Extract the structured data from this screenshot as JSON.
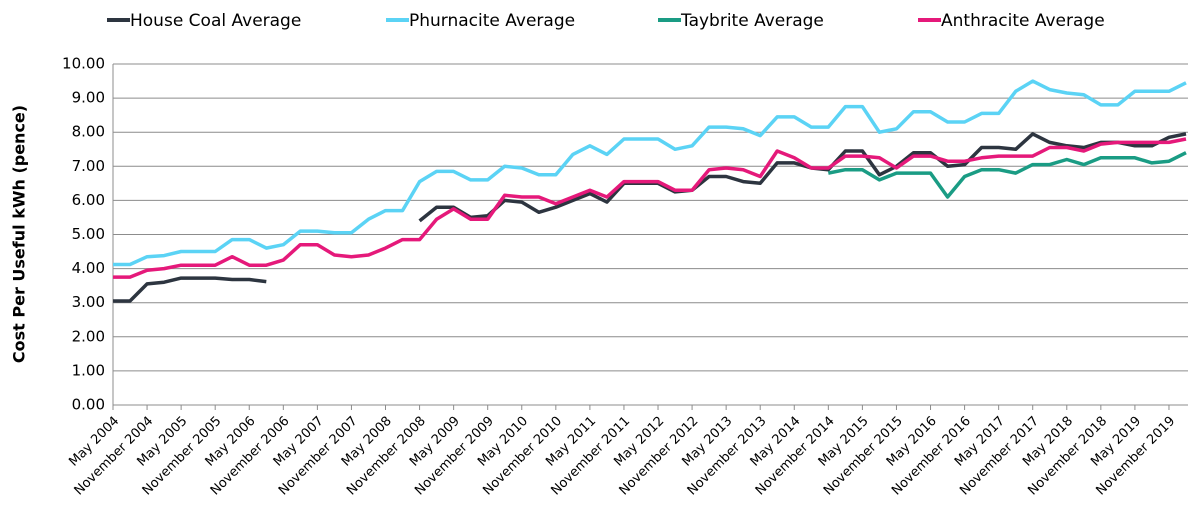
{
  "chart_data": {
    "type": "line",
    "y_label": "Cost Per Useful kWh (pence)",
    "categories": [
      "May 2004",
      null,
      "November 2004",
      null,
      "May 2005",
      null,
      "November 2005",
      null,
      "May 2006",
      null,
      "November 2006",
      null,
      "May 2007",
      null,
      "November 2007",
      null,
      "May 2008",
      null,
      "November 2008",
      null,
      "May 2009",
      null,
      "November 2009",
      null,
      "May 2010",
      null,
      "November 2010",
      null,
      "May 2011",
      null,
      "November 2011",
      null,
      "May 2012",
      null,
      "November 2012",
      null,
      "May 2013",
      null,
      "November 2013",
      null,
      "May 2014",
      null,
      "November 2014",
      null,
      "May 2015",
      null,
      "November 2015",
      null,
      "May 2016",
      null,
      "November 2016",
      null,
      "May 2017",
      null,
      "November 2017",
      null,
      "May 2018",
      null,
      "November 2018",
      null,
      "May 2019",
      null,
      "November 2019",
      null
    ],
    "series": [
      {
        "name": "House Coal Average",
        "color": "#2d3540",
        "values": [
          3.05,
          3.05,
          3.55,
          3.6,
          3.72,
          3.72,
          3.72,
          3.68,
          3.68,
          3.62,
          null,
          null,
          null,
          null,
          null,
          null,
          null,
          null,
          5.4,
          5.8,
          5.8,
          5.5,
          5.55,
          6.0,
          5.95,
          5.65,
          5.8,
          6.0,
          6.2,
          5.95,
          6.5,
          6.5,
          6.5,
          6.25,
          6.3,
          6.7,
          6.7,
          6.55,
          6.5,
          7.1,
          7.1,
          6.95,
          6.9,
          7.45,
          7.45,
          6.75,
          7.0,
          7.4,
          7.4,
          7.0,
          7.05,
          7.55,
          7.55,
          7.5,
          7.95,
          7.7,
          7.6,
          7.55,
          7.7,
          7.7,
          7.6,
          7.6,
          7.85,
          7.95
        ]
      },
      {
        "name": "Phurnacite Average",
        "color": "#5bd3f5",
        "values": [
          4.12,
          4.12,
          4.35,
          4.38,
          4.5,
          4.5,
          4.5,
          4.85,
          4.85,
          4.6,
          4.7,
          5.1,
          5.1,
          5.05,
          5.05,
          5.45,
          5.7,
          5.7,
          6.55,
          6.85,
          6.85,
          6.6,
          6.6,
          7.0,
          6.95,
          6.75,
          6.75,
          7.35,
          7.6,
          7.35,
          7.8,
          7.8,
          7.8,
          7.5,
          7.6,
          8.15,
          8.15,
          8.1,
          7.9,
          8.45,
          8.45,
          8.15,
          8.15,
          8.75,
          8.75,
          8.0,
          8.1,
          8.6,
          8.6,
          8.3,
          8.3,
          8.55,
          8.55,
          9.2,
          9.5,
          9.25,
          9.15,
          9.1,
          8.8,
          8.8,
          9.2,
          9.2,
          9.2,
          9.45
        ]
      },
      {
        "name": "Taybrite Average",
        "color": "#1a9c84",
        "values": [
          null,
          null,
          null,
          null,
          null,
          null,
          null,
          null,
          null,
          null,
          null,
          null,
          null,
          null,
          null,
          null,
          null,
          null,
          null,
          null,
          null,
          null,
          null,
          null,
          null,
          null,
          null,
          null,
          null,
          null,
          null,
          null,
          null,
          null,
          null,
          null,
          null,
          null,
          null,
          null,
          null,
          null,
          6.8,
          6.9,
          6.9,
          6.6,
          6.8,
          6.8,
          6.8,
          6.1,
          6.7,
          6.9,
          6.9,
          6.8,
          7.05,
          7.05,
          7.2,
          7.05,
          7.25,
          7.25,
          7.25,
          7.1,
          7.15,
          7.4
        ]
      },
      {
        "name": "Anthracite Average",
        "color": "#e5197a",
        "values": [
          3.75,
          3.75,
          3.95,
          4.0,
          4.1,
          4.1,
          4.1,
          4.35,
          4.1,
          4.1,
          4.25,
          4.7,
          4.7,
          4.4,
          4.35,
          4.4,
          4.6,
          4.85,
          4.85,
          5.45,
          5.75,
          5.45,
          5.45,
          6.15,
          6.1,
          6.1,
          5.9,
          6.1,
          6.3,
          6.1,
          6.55,
          6.55,
          6.55,
          6.3,
          6.3,
          6.9,
          6.95,
          6.9,
          6.7,
          7.45,
          7.25,
          6.95,
          6.95,
          7.3,
          7.3,
          7.25,
          6.95,
          7.3,
          7.3,
          7.15,
          7.15,
          7.25,
          7.3,
          7.3,
          7.3,
          7.55,
          7.55,
          7.45,
          7.65,
          7.7,
          7.7,
          7.7,
          7.7,
          7.8
        ]
      }
    ],
    "ylim": [
      0,
      10
    ],
    "yticks": [
      {
        "value": 0,
        "label": "0.00"
      },
      {
        "value": 1,
        "label": "1.00"
      },
      {
        "value": 2,
        "label": "2.00"
      },
      {
        "value": 3,
        "label": "3.00"
      },
      {
        "value": 4,
        "label": "4.00"
      },
      {
        "value": 5,
        "label": "5.00"
      },
      {
        "value": 6,
        "label": "6.00"
      },
      {
        "value": 7,
        "label": "7.00"
      },
      {
        "value": 8,
        "label": "8.00"
      },
      {
        "value": 9,
        "label": "9.00"
      },
      {
        "value": 10,
        "label": "10.00"
      }
    ],
    "grid": true,
    "legend": "top"
  }
}
